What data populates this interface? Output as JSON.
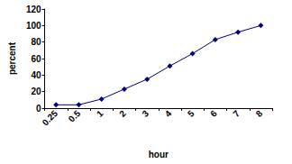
{
  "chart_data": {
    "type": "line",
    "x_label": "hour",
    "y_label": "percent",
    "categories": [
      "0.25",
      "0.5",
      "1",
      "2",
      "3",
      "4",
      "5",
      "6",
      "7",
      "8"
    ],
    "values": [
      4,
      4,
      11,
      23,
      35,
      51,
      66,
      83,
      92,
      100
    ],
    "color": "#000080",
    "marker": "diamond",
    "line_style": "solid",
    "ylim": [
      0,
      120
    ],
    "yticks": [
      0,
      20,
      40,
      60,
      80,
      100,
      120
    ],
    "grid": false
  }
}
